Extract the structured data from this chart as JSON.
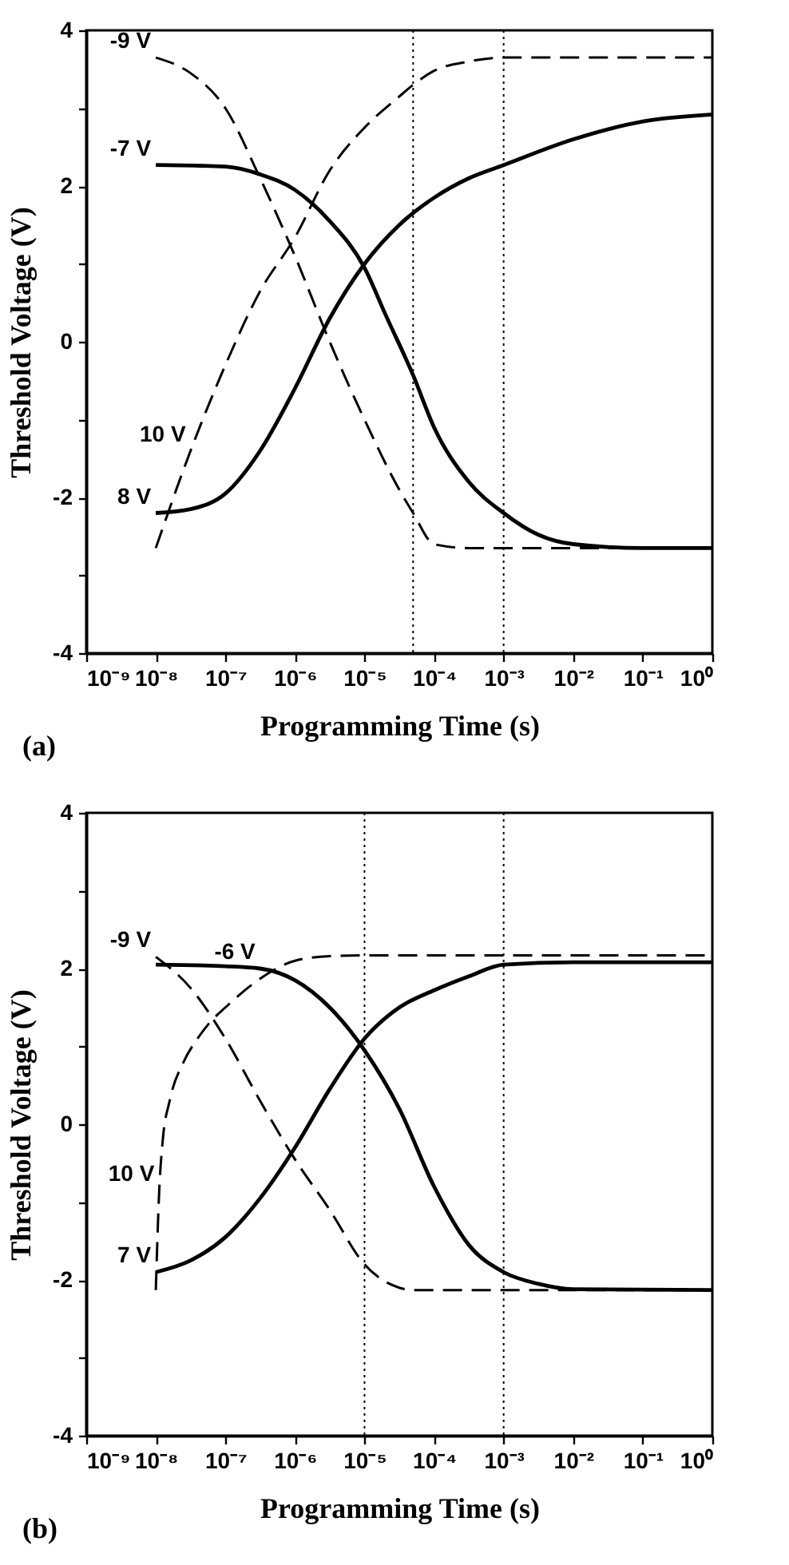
{
  "chart_data": [
    {
      "type": "line",
      "xlabel": "Programming Time  (s)",
      "ylabel": "Threshold Voltage (V)",
      "log": "x",
      "xlim": [
        1e-09,
        1
      ],
      "ylim": [
        -4,
        4
      ],
      "xticks": [
        {
          "value": 1e-09,
          "label": "10⁻⁹"
        },
        {
          "value": 1e-08,
          "label": "10⁻⁸"
        },
        {
          "value": 1e-07,
          "label": "10⁻⁷"
        },
        {
          "value": 1e-06,
          "label": "10⁻⁶"
        },
        {
          "value": 1e-05,
          "label": "10⁻⁵"
        },
        {
          "value": 0.0001,
          "label": "10⁻⁴"
        },
        {
          "value": 0.001,
          "label": "10⁻³"
        },
        {
          "value": 0.01,
          "label": "10⁻²"
        },
        {
          "value": 0.1,
          "label": "10⁻¹"
        },
        {
          "value": 1,
          "label": "10⁰"
        }
      ],
      "yticks": [
        -4,
        {
          "value": -3,
          "label": null
        },
        -2,
        {
          "value": -1,
          "label": null
        },
        0,
        {
          "value": 1,
          "label": null
        },
        2,
        {
          "value": 3,
          "label": null
        },
        4
      ],
      "series": [
        {
          "color": "#000000",
          "line_style": "dashed",
          "x": [
            1e-08,
            3.16e-08,
            1e-07,
            3.16e-07,
            1e-06,
            3.16e-06,
            1e-05,
            3.16e-05,
            5e-05,
            0.0001,
            0.000316,
            1
          ],
          "values": [
            3.65,
            3.45,
            3.0,
            2.1,
            1.1,
            0.0,
            -1.0,
            -1.9,
            -2.2,
            -2.6,
            -2.65,
            -2.65
          ]
        },
        {
          "color": "#000000",
          "line_style": "solid",
          "x": [
            1e-08,
            1e-07,
            3.16e-07,
            1e-06,
            3.16e-06,
            1e-05,
            2e-05,
            5e-05,
            0.0001,
            0.000316,
            0.001,
            0.00316,
            0.01,
            0.1,
            1
          ],
          "values": [
            2.27,
            2.25,
            2.15,
            1.95,
            1.55,
            0.95,
            0.35,
            -0.43,
            -1.1,
            -1.8,
            -2.2,
            -2.48,
            -2.6,
            -2.65,
            -2.65
          ]
        },
        {
          "color": "#000000",
          "line_style": "dashed",
          "x": [
            1e-08,
            3.16e-08,
            1e-07,
            3.16e-07,
            1e-06,
            3.16e-06,
            1e-05,
            3.16e-05,
            5e-05,
            0.0001,
            0.000316,
            0.001,
            1
          ],
          "values": [
            -2.65,
            -1.4,
            -0.3,
            0.65,
            1.34,
            2.2,
            2.75,
            3.15,
            3.3,
            3.48,
            3.6,
            3.65,
            3.65
          ]
        },
        {
          "color": "#000000",
          "line_style": "solid",
          "x": [
            1e-08,
            3.16e-08,
            1e-07,
            3.16e-07,
            1e-06,
            3.16e-06,
            1e-05,
            3.16e-05,
            0.0001,
            0.000316,
            0.001,
            0.01,
            0.1,
            1
          ],
          "values": [
            -2.2,
            -2.15,
            -1.95,
            -1.4,
            -0.6,
            0.3,
            1.0,
            1.5,
            1.85,
            2.1,
            2.27,
            2.6,
            2.83,
            2.92
          ]
        }
      ],
      "ref_lines": [
        {
          "axis": "x",
          "value": 5e-05,
          "color": "#000000",
          "line_style": "dotted"
        },
        {
          "axis": "x",
          "value": 0.001,
          "color": "#000000",
          "line_style": "dotted"
        }
      ],
      "annotations": [
        {
          "text": "-9 V",
          "x": 1e-08,
          "y": 3.65
        },
        {
          "text": "-7 V",
          "x": 1e-08,
          "y": 2.27
        },
        {
          "text": "10 V",
          "x": 3.16e-08,
          "y": -1.4
        },
        {
          "text": "8 V",
          "x": 1e-08,
          "y": -2.2
        },
        "(a)"
      ]
    },
    {
      "type": "line",
      "xlabel": "Programming Time (s)",
      "ylabel": "Threshold Voltage (V)",
      "log": "x",
      "xlim": [
        1e-09,
        1
      ],
      "ylim": [
        -4,
        4
      ],
      "xticks": [
        {
          "value": 1e-09,
          "label": "10⁻⁹"
        },
        {
          "value": 1e-08,
          "label": "10⁻⁸"
        },
        {
          "value": 1e-07,
          "label": "10⁻⁷"
        },
        {
          "value": 1e-06,
          "label": "10⁻⁶"
        },
        {
          "value": 1e-05,
          "label": "10⁻⁵"
        },
        {
          "value": 0.0001,
          "label": "10⁻⁴"
        },
        {
          "value": 0.001,
          "label": "10⁻³"
        },
        {
          "value": 0.01,
          "label": "10⁻²"
        },
        {
          "value": 0.1,
          "label": "10⁻¹"
        },
        {
          "value": 1,
          "label": "10⁰"
        }
      ],
      "yticks": [
        -4,
        {
          "value": -3,
          "label": null
        },
        -2,
        {
          "value": -1,
          "label": null
        },
        0,
        {
          "value": 1,
          "label": null
        },
        2,
        {
          "value": 3,
          "label": null
        },
        4
      ],
      "series": [
        {
          "color": "#000000",
          "line_style": "solid",
          "x": [
            1e-08,
            1e-07,
            3.16e-07,
            1e-06,
            3.16e-06,
            1e-05,
            3.16e-05,
            0.0001,
            0.000316,
            0.001,
            0.00316,
            0.01,
            1
          ],
          "values": [
            2.05,
            2.03,
            2.0,
            1.85,
            1.5,
            0.95,
            0.2,
            -0.8,
            -1.55,
            -1.9,
            -2.05,
            -2.12,
            -2.13
          ]
        },
        {
          "color": "#000000",
          "line_style": "dashed",
          "x": [
            1e-08,
            3.16e-08,
            1e-07,
            3.16e-07,
            1e-06,
            3.16e-06,
            1e-05,
            3.16e-05,
            5e-05,
            1
          ],
          "values": [
            2.15,
            1.75,
            1.1,
            0.3,
            -0.45,
            -1.1,
            -1.8,
            -2.1,
            -2.13,
            -2.13
          ]
        },
        {
          "color": "#000000",
          "line_style": "dashed",
          "x": [
            1e-08,
            1.12e-08,
            1.26e-08,
            1.58e-08,
            2.51e-08,
            3.98e-08,
            6.31e-08,
            1e-07,
            3.16e-07,
            1e-06,
            3.16e-06,
            1e-05,
            1
          ],
          "values": [
            -2.13,
            -0.85,
            -0.2,
            0.3,
            0.8,
            1.1,
            1.33,
            1.5,
            1.87,
            2.1,
            2.16,
            2.17,
            2.17
          ]
        },
        {
          "color": "#000000",
          "line_style": "solid",
          "x": [
            1e-08,
            3.16e-08,
            1e-07,
            3.16e-07,
            1e-06,
            3.16e-06,
            1e-05,
            3.16e-05,
            0.0001,
            0.000316,
            0.001,
            0.01,
            1
          ],
          "values": [
            -1.9,
            -1.75,
            -1.45,
            -0.95,
            -0.3,
            0.45,
            1.1,
            1.5,
            1.72,
            1.9,
            2.05,
            2.08,
            2.08
          ]
        }
      ],
      "ref_lines": [
        {
          "axis": "x",
          "value": 1e-05,
          "color": "#000000",
          "line_style": "dotted"
        },
        {
          "axis": "x",
          "value": 0.001,
          "color": "#000000",
          "line_style": "dotted"
        }
      ],
      "annotations": [
        {
          "text": "-6 V",
          "x": 3.16e-07,
          "y": 2.0
        },
        {
          "text": "-9 V",
          "x": 1e-08,
          "y": 2.15
        },
        {
          "text": "10 V",
          "x": 1.12e-08,
          "y": -0.85
        },
        {
          "text": "7 V",
          "x": 1e-08,
          "y": -1.9
        },
        "(b)"
      ]
    }
  ]
}
